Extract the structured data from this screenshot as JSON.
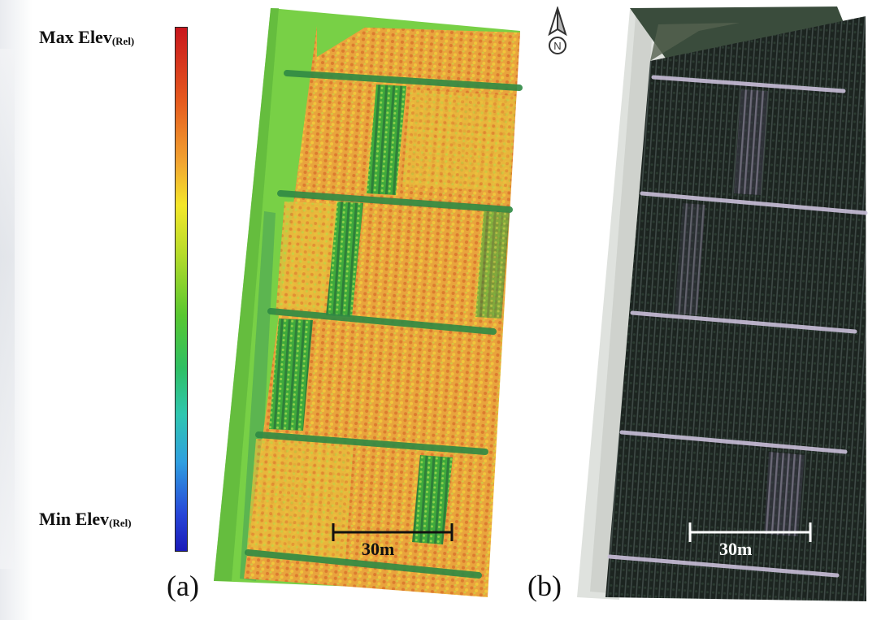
{
  "legend": {
    "max_label_main": "Max Elev",
    "max_label_sub": "(Rel)",
    "min_label_main": "Min Elev",
    "min_label_sub": "(Rel)"
  },
  "panels": [
    {
      "label": "(a)",
      "scalebar_text": "30m",
      "type": "relative-elevation-map"
    },
    {
      "label": "(b)",
      "scalebar_text": "30m",
      "type": "rgb-orthophoto"
    }
  ],
  "north_arrow": {
    "letter": "N",
    "icon": "north-arrow-icon"
  },
  "colors": {
    "ramp_top": "#c8161d",
    "ramp_mid": "#58c730",
    "ramp_bottom": "#1a1ab8",
    "field_orange": "#e29a3c",
    "field_green": "#7dd64a",
    "orthophoto_dark": "#1f2622"
  }
}
